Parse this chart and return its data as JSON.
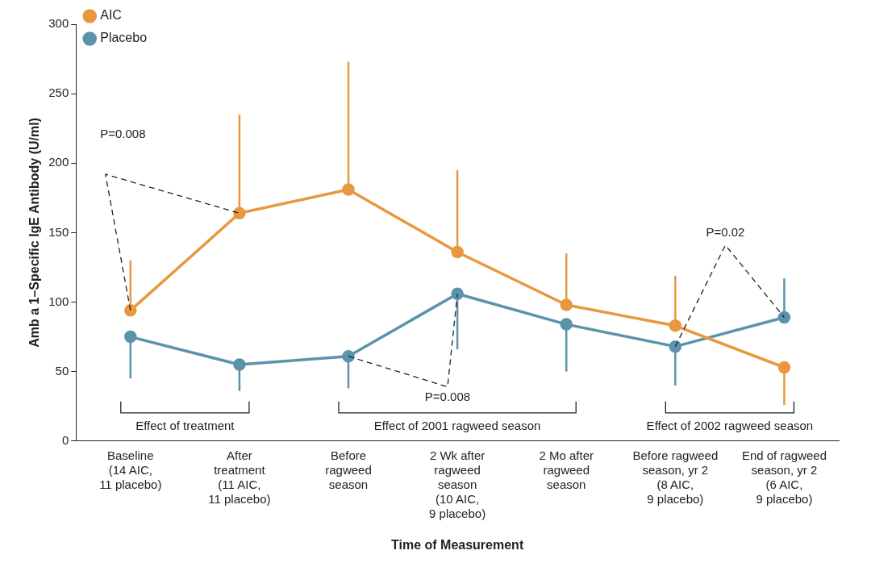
{
  "chart_data": {
    "type": "line",
    "xlabel": "Time of Measurement",
    "ylabel": "Amb a 1–Specific IgE Antibody (U/ml)",
    "categories": [
      "Baseline\n(14 AIC,\n11 placebo)",
      "After\ntreatment\n(11 AIC,\n11 placebo)",
      "Before\nragweed\nseason",
      "2 Wk after\nragweed\nseason\n(10 AIC,\n9 placebo)",
      "2 Mo after\nragweed\nseason",
      "Before ragweed\nseason, yr 2\n(8 AIC,\n9 placebo)",
      "End of ragweed\nseason, yr 2\n(6 AIC,\n9 placebo)"
    ],
    "series": [
      {
        "name": "AIC",
        "color": "#e8983e",
        "values": [
          94,
          164,
          181,
          136,
          98,
          83,
          53
        ],
        "errors": [
          [
            94,
            130
          ],
          [
            164,
            235
          ],
          [
            181,
            273
          ],
          [
            136,
            195
          ],
          [
            98,
            135
          ],
          [
            83,
            119
          ],
          [
            26,
            53
          ]
        ]
      },
      {
        "name": "Placebo",
        "color": "#5b93ab",
        "values": [
          75,
          55,
          61,
          106,
          84,
          68,
          89
        ],
        "errors": [
          [
            45,
            75
          ],
          [
            36,
            55
          ],
          [
            38,
            61
          ],
          [
            66,
            106
          ],
          [
            50,
            84
          ],
          [
            40,
            68
          ],
          [
            89,
            117
          ]
        ]
      }
    ],
    "ylim": [
      0,
      300
    ],
    "yticks": [
      0,
      50,
      100,
      150,
      200,
      250,
      300
    ],
    "grid": false,
    "legend": "top left",
    "marker": "circle",
    "line_style": "solid",
    "annotations": [
      "P=0.008",
      "P=0.008",
      "P=0.02",
      "Effect of treatment",
      "Effect of 2001 ragweed season",
      "Effect of 2002 ragweed season"
    ]
  }
}
